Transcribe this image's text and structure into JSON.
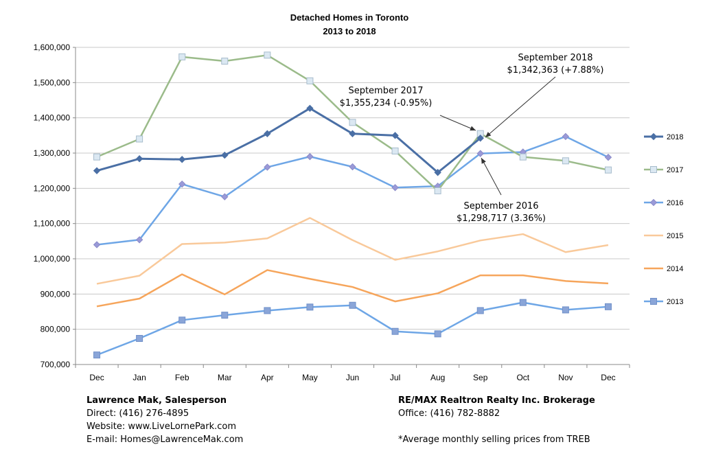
{
  "chart_data": {
    "type": "line",
    "title": "Detached Homes in Toronto",
    "subtitle": "2013 to 2018",
    "xlabel": "",
    "ylabel": "",
    "categories": [
      "Dec",
      "Jan",
      "Feb",
      "Mar",
      "Apr",
      "May",
      "Jun",
      "Jul",
      "Aug",
      "Sep",
      "Oct",
      "Nov",
      "Dec"
    ],
    "ylim": [
      700000,
      1600000
    ],
    "yticks": [
      700000,
      800000,
      900000,
      1000000,
      1100000,
      1200000,
      1300000,
      1400000,
      1500000,
      1600000
    ],
    "ytick_labels": [
      "700,000",
      "800,000",
      "900,000",
      "1,000,000",
      "1,100,000",
      "1,200,000",
      "1,300,000",
      "1,400,000",
      "1,500,000",
      "1,600,000"
    ],
    "grid": true,
    "legend_position": "right",
    "series": [
      {
        "name": "2018",
        "color": "#4a6fa5",
        "marker": "diamond",
        "values": [
          1250000,
          1284000,
          1282000,
          1294000,
          1355000,
          1427000,
          1355000,
          1350000,
          1245000,
          1342363,
          null,
          null,
          null
        ]
      },
      {
        "name": "2017",
        "color": "#9bbb8a",
        "marker": "square-open",
        "values": [
          1289000,
          1340000,
          1573000,
          1561000,
          1578000,
          1505000,
          1387000,
          1306000,
          1193000,
          1355234,
          1289000,
          1278000,
          1252000
        ]
      },
      {
        "name": "2016",
        "color": "#6ea6e6",
        "marker": "diamond-light",
        "values": [
          1040000,
          1054000,
          1212000,
          1176000,
          1260000,
          1290000,
          1261000,
          1202000,
          1206000,
          1298717,
          1303000,
          1347000,
          1288000
        ]
      },
      {
        "name": "2015",
        "color": "#f9c99a",
        "marker": "none",
        "values": [
          929000,
          952000,
          1042000,
          1046000,
          1058000,
          1116000,
          1053000,
          997000,
          1021000,
          1052000,
          1070000,
          1019000,
          1039000
        ]
      },
      {
        "name": "2014",
        "color": "#f6a55b",
        "marker": "none",
        "values": [
          865000,
          887000,
          956000,
          899000,
          968000,
          943000,
          920000,
          879000,
          902000,
          953000,
          953000,
          937000,
          930000
        ]
      },
      {
        "name": "2013",
        "color": "#6ea6e6",
        "marker": "square",
        "values": [
          727000,
          774000,
          826000,
          840000,
          853000,
          863000,
          868000,
          794000,
          787000,
          853000,
          876000,
          855000,
          864000
        ]
      }
    ],
    "annotations": [
      {
        "line1": "September 2018",
        "line2": "$1,342,363 (+7.88%)",
        "x": "Sep",
        "series": "2018"
      },
      {
        "line1": "September 2017",
        "line2": "$1,355,234 (-0.95%)",
        "x": "Sep",
        "series": "2017"
      },
      {
        "line1": "September 2016",
        "line2": "$1,298,717 (3.36%)",
        "x": "Sep",
        "series": "2016"
      }
    ]
  },
  "footer": {
    "left": {
      "name": "Lawrence Mak, Salesperson",
      "direct": "Direct:  (416) 276-4895",
      "website": "Website:  www.LiveLornePark.com",
      "email": "E-mail:  Homes@LawrenceMak.com"
    },
    "right": {
      "company": "RE/MAX Realtron Realty Inc. Brokerage",
      "office": "Office: (416) 782-8882",
      "note": "*Average monthly selling prices from TREB"
    }
  }
}
